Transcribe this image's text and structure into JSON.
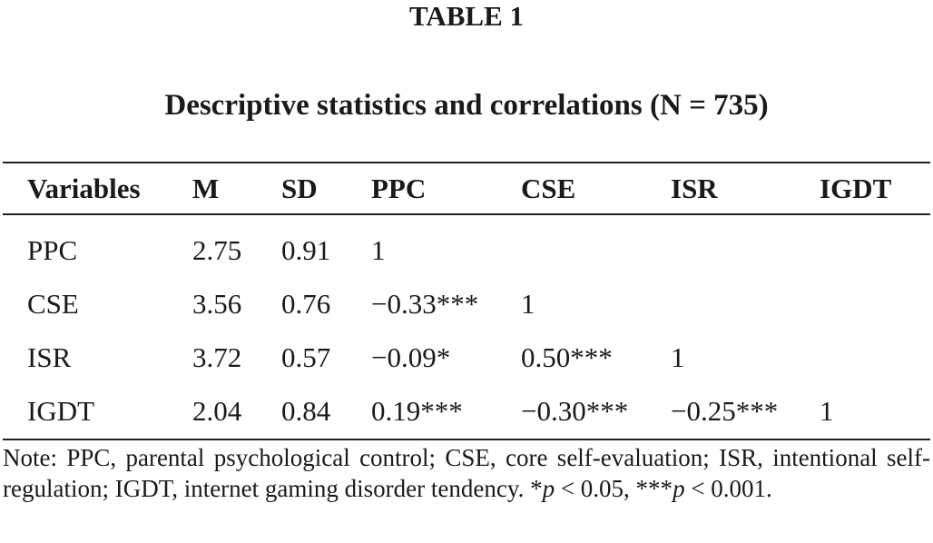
{
  "table_label": "TABLE 1",
  "table_title": "Descriptive statistics and correlations (N = 735)",
  "columns": [
    "Variables",
    "M",
    "SD",
    "PPC",
    "CSE",
    "ISR",
    "IGDT"
  ],
  "rows": [
    [
      "PPC",
      "2.75",
      "0.91",
      "1",
      "",
      "",
      ""
    ],
    [
      "CSE",
      "3.56",
      "0.76",
      "−0.33***",
      "1",
      "",
      ""
    ],
    [
      "ISR",
      "3.72",
      "0.57",
      "−0.09*",
      "0.50***",
      "1",
      ""
    ],
    [
      "IGDT",
      "2.04",
      "0.84",
      "0.19***",
      "−0.30***",
      "−0.25***",
      "1"
    ]
  ],
  "note": {
    "text": "Note: PPC, parental psychological control; CSE, core self-evaluation; ISR, intentional self-regulation; IGDT, internet gaming disorder tendency. *",
    "p1_symbol": "p",
    "p1_threshold": " < 0.05, ***",
    "p2_symbol": "p",
    "p2_threshold": " < 0.001."
  }
}
